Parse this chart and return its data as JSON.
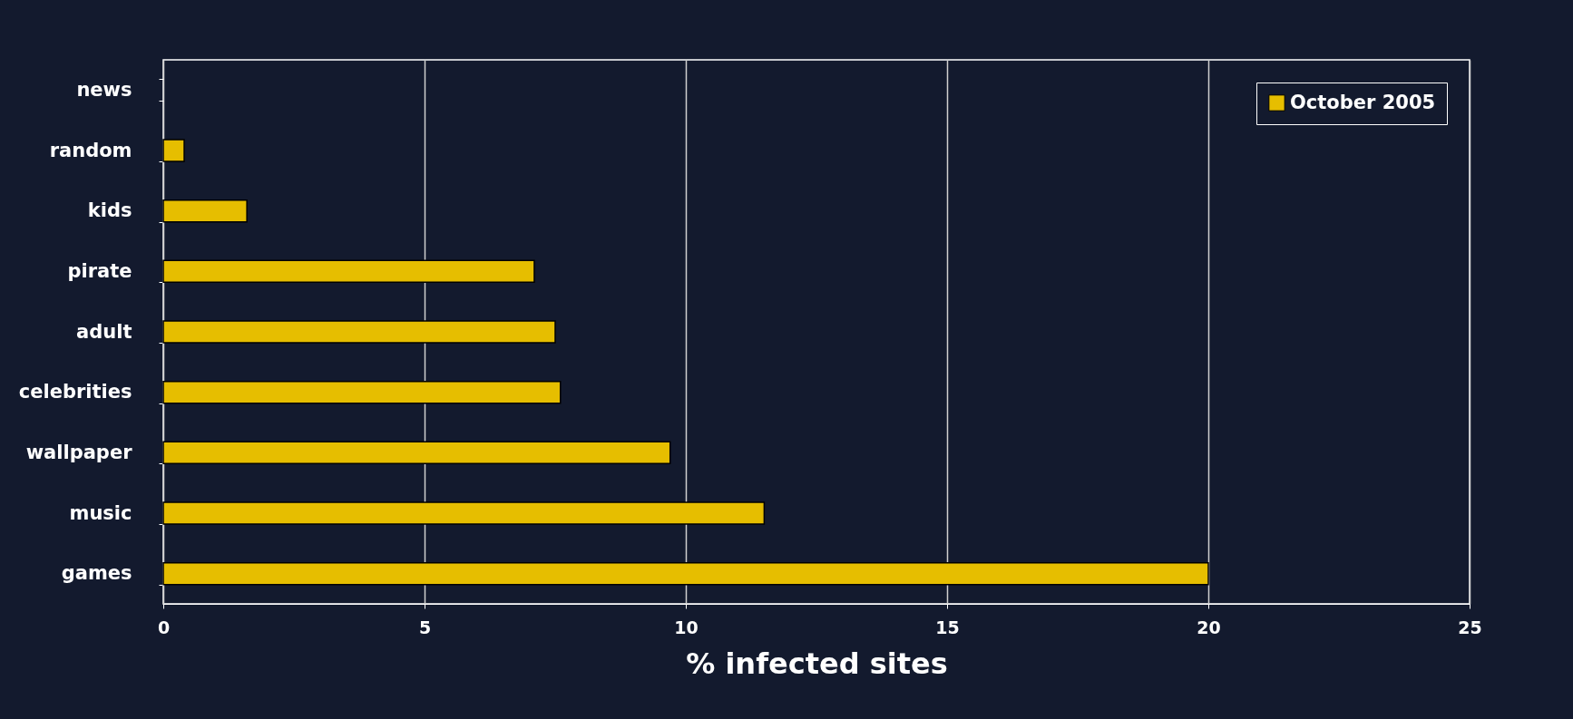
{
  "chart_data": {
    "type": "bar",
    "orientation": "horizontal",
    "xlabel": "% infected sites",
    "categories": [
      "news",
      "random",
      "kids",
      "pirate",
      "adult",
      "celebrities",
      "wallpaper",
      "music",
      "games"
    ],
    "series": [
      {
        "name": "October 2005",
        "color": "#e6be00",
        "values": [
          null,
          0.4,
          1.6,
          7.1,
          7.5,
          7.6,
          9.7,
          11.5,
          20
        ]
      }
    ],
    "xlim": [
      0,
      25
    ],
    "xticks": [
      0,
      5,
      10,
      15,
      20,
      25
    ],
    "grid": "x",
    "legend": "top right"
  }
}
